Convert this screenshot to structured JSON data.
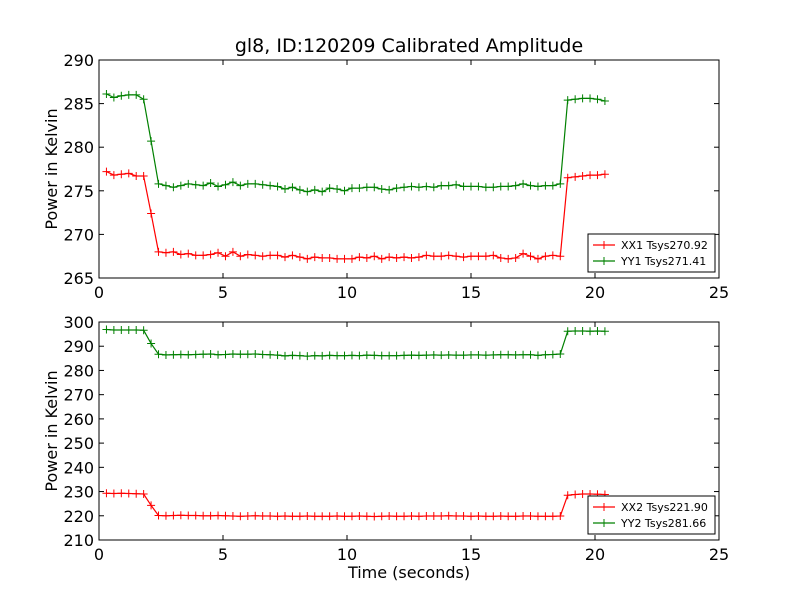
{
  "chart_data": [
    {
      "type": "line",
      "title": "gl8, ID:120209 Calibrated Amplitude",
      "xlabel": "",
      "ylabel": "Power in Kelvin",
      "xlim": [
        0,
        25
      ],
      "ylim": [
        265,
        290
      ],
      "xticks": [
        "0",
        "5",
        "10",
        "15",
        "20",
        "25"
      ],
      "yticks": [
        "265",
        "270",
        "275",
        "280",
        "285",
        "290"
      ],
      "grid": false,
      "legend_position": "lower-right",
      "x": [
        0.3,
        0.6,
        0.9,
        1.2,
        1.5,
        1.8,
        2.1,
        2.4,
        2.7,
        3.0,
        3.3,
        3.6,
        3.9,
        4.2,
        4.5,
        4.8,
        5.1,
        5.4,
        5.7,
        6.0,
        6.3,
        6.6,
        6.9,
        7.2,
        7.5,
        7.8,
        8.1,
        8.4,
        8.7,
        9.0,
        9.3,
        9.6,
        9.9,
        10.2,
        10.5,
        10.8,
        11.1,
        11.4,
        11.7,
        12.0,
        12.3,
        12.6,
        12.9,
        13.2,
        13.5,
        13.8,
        14.1,
        14.4,
        14.7,
        15.0,
        15.3,
        15.6,
        15.9,
        16.2,
        16.5,
        16.8,
        17.1,
        17.4,
        17.7,
        18.0,
        18.3,
        18.6,
        18.9,
        19.2,
        19.5,
        19.8,
        20.1,
        20.4
      ],
      "series": [
        {
          "name": "XX1 Tsys270.92",
          "color": "#ff0000",
          "values": [
            277.2,
            276.8,
            276.9,
            277.0,
            276.7,
            276.7,
            272.4,
            268.0,
            267.9,
            268.0,
            267.7,
            267.8,
            267.6,
            267.6,
            267.7,
            267.9,
            267.5,
            268.0,
            267.5,
            267.7,
            267.6,
            267.5,
            267.6,
            267.6,
            267.4,
            267.6,
            267.4,
            267.2,
            267.4,
            267.3,
            267.3,
            267.2,
            267.2,
            267.2,
            267.4,
            267.3,
            267.5,
            267.2,
            267.4,
            267.3,
            267.4,
            267.3,
            267.4,
            267.6,
            267.5,
            267.5,
            267.6,
            267.5,
            267.4,
            267.5,
            267.5,
            267.5,
            267.6,
            267.3,
            267.2,
            267.3,
            267.8,
            267.5,
            267.2,
            267.5,
            267.6,
            267.5,
            276.5,
            276.6,
            276.7,
            276.8,
            276.8,
            276.9
          ]
        },
        {
          "name": "YY1 Tsys271.41",
          "color": "#008000",
          "values": [
            286.1,
            285.7,
            285.9,
            286.0,
            286.0,
            285.5,
            280.7,
            275.8,
            275.6,
            275.4,
            275.6,
            275.8,
            275.7,
            275.6,
            275.9,
            275.5,
            275.7,
            276.0,
            275.6,
            275.8,
            275.8,
            275.7,
            275.6,
            275.5,
            275.2,
            275.4,
            275.1,
            274.9,
            275.1,
            274.9,
            275.3,
            275.2,
            275.0,
            275.3,
            275.3,
            275.4,
            275.4,
            275.2,
            275.1,
            275.3,
            275.4,
            275.5,
            275.4,
            275.5,
            275.4,
            275.6,
            275.6,
            275.7,
            275.5,
            275.5,
            275.5,
            275.4,
            275.4,
            275.5,
            275.5,
            275.6,
            275.8,
            275.6,
            275.5,
            275.6,
            275.6,
            275.8,
            285.4,
            285.5,
            285.6,
            285.6,
            285.5,
            285.3
          ]
        }
      ]
    },
    {
      "type": "line",
      "title": "",
      "xlabel": "Time (seconds)",
      "ylabel": "Power in Kelvin",
      "xlim": [
        0,
        25
      ],
      "ylim": [
        210,
        300
      ],
      "xticks": [
        "0",
        "5",
        "10",
        "15",
        "20",
        "25"
      ],
      "yticks": [
        "210",
        "220",
        "230",
        "240",
        "250",
        "260",
        "270",
        "280",
        "290",
        "300"
      ],
      "grid": false,
      "legend_position": "lower-right",
      "x": [
        0.3,
        0.6,
        0.9,
        1.2,
        1.5,
        1.8,
        2.1,
        2.4,
        2.7,
        3.0,
        3.3,
        3.6,
        3.9,
        4.2,
        4.5,
        4.8,
        5.1,
        5.4,
        5.7,
        6.0,
        6.3,
        6.6,
        6.9,
        7.2,
        7.5,
        7.8,
        8.1,
        8.4,
        8.7,
        9.0,
        9.3,
        9.6,
        9.9,
        10.2,
        10.5,
        10.8,
        11.1,
        11.4,
        11.7,
        12.0,
        12.3,
        12.6,
        12.9,
        13.2,
        13.5,
        13.8,
        14.1,
        14.4,
        14.7,
        15.0,
        15.3,
        15.6,
        15.9,
        16.2,
        16.5,
        16.8,
        17.1,
        17.4,
        17.7,
        18.0,
        18.3,
        18.6,
        18.9,
        19.2,
        19.5,
        19.8,
        20.1,
        20.4
      ],
      "series": [
        {
          "name": "XX2 Tsys221.90",
          "color": "#ff0000",
          "values": [
            229.3,
            229.2,
            229.3,
            229.2,
            229.1,
            229.0,
            224.3,
            220.1,
            220.0,
            220.1,
            220.2,
            220.1,
            220.1,
            220.0,
            220.0,
            220.1,
            220.0,
            219.9,
            219.8,
            219.9,
            220.0,
            219.9,
            219.9,
            219.8,
            219.9,
            219.8,
            219.8,
            219.9,
            219.8,
            219.8,
            219.8,
            219.9,
            219.8,
            219.8,
            219.9,
            219.8,
            219.7,
            219.8,
            219.9,
            219.8,
            219.8,
            219.9,
            219.8,
            219.9,
            219.9,
            219.9,
            220.0,
            219.9,
            219.9,
            219.8,
            219.9,
            219.8,
            219.8,
            219.9,
            219.8,
            219.8,
            219.9,
            219.9,
            219.8,
            219.8,
            219.8,
            219.9,
            228.5,
            228.8,
            229.0,
            229.0,
            228.9,
            228.8
          ]
        },
        {
          "name": "YY2 Tsys281.66",
          "color": "#008000",
          "values": [
            296.9,
            296.7,
            296.7,
            296.7,
            296.7,
            296.6,
            291.1,
            286.7,
            286.4,
            286.5,
            286.6,
            286.5,
            286.6,
            286.7,
            286.8,
            286.5,
            286.6,
            286.8,
            286.7,
            286.7,
            286.8,
            286.6,
            286.5,
            286.3,
            286.0,
            286.2,
            286.1,
            285.9,
            286.1,
            286.0,
            286.2,
            286.1,
            286.1,
            286.2,
            286.1,
            286.3,
            286.2,
            286.1,
            286.1,
            286.1,
            286.2,
            286.3,
            286.2,
            286.3,
            286.4,
            286.3,
            286.4,
            286.3,
            286.3,
            286.4,
            286.4,
            286.3,
            286.4,
            286.5,
            286.5,
            286.4,
            286.5,
            286.5,
            286.2,
            286.5,
            286.6,
            286.8,
            296.2,
            296.3,
            296.3,
            296.2,
            296.3,
            296.2
          ]
        }
      ]
    }
  ]
}
